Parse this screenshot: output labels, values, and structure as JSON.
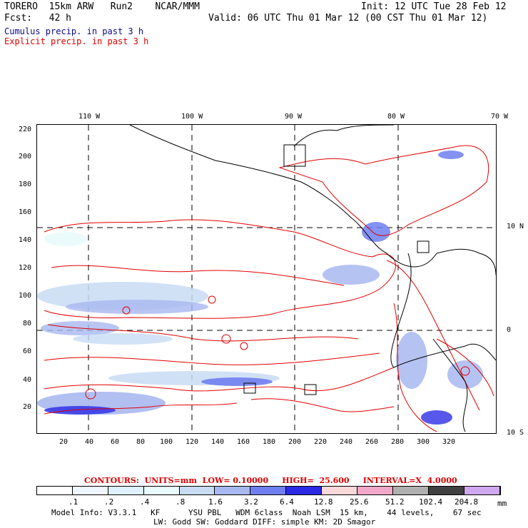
{
  "header": {
    "model": "TORERO  15km ARW   Run2    NCAR/MMM",
    "init": "Init: 12 UTC Tue 28 Feb 12",
    "fcst": "Fcst:   42 h",
    "valid": "Valid: 06 UTC Thu 01 Mar 12 (00 CST Thu 01 Mar 12)",
    "legend_cumulus": "Cumulus precip. in past 3 h",
    "legend_explicit": "Explicit precip. in past 3 h"
  },
  "axes": {
    "top_lon": [
      "110 W",
      "100 W",
      "90 W",
      "80 W",
      "70 W"
    ],
    "left_y": [
      "220",
      "200",
      "180",
      "160",
      "140",
      "120",
      "100",
      "80",
      "60",
      "40",
      "20"
    ],
    "bottom_x": [
      "20",
      "40",
      "60",
      "80",
      "100",
      "120",
      "140",
      "160",
      "180",
      "200",
      "220",
      "240",
      "260",
      "280",
      "300",
      "320"
    ],
    "right_lat": [
      "10 N",
      "0",
      "10 S"
    ]
  },
  "contours_line": "CONTOURS:  UNITS=mm  LOW= 0.10000     HIGH=  25.600     INTERVAL=X  4.0000",
  "colorbar": {
    "labels": [
      ".1",
      ".2",
      ".4",
      ".8",
      "1.6",
      "3.2",
      "6.4",
      "12.8",
      "25.6",
      "51.2",
      "102.4",
      "204.8"
    ],
    "units": "mm",
    "colors": [
      "#ffffff",
      "#f0f6ff",
      "#dff2ff",
      "#e9fbfb",
      "#c8dcf5",
      "#a8b8f0",
      "#6f7ff0",
      "#2a2ae8",
      "#f8d8d8",
      "#f2a8c8",
      "#b0b0b0",
      "#404040",
      "#d0a8f0"
    ]
  },
  "footer": {
    "line1": "Model Info: V3.3.1   KF      YSU PBL   WDM 6class  Noah LSM  15 km,    44 levels,    67 sec",
    "line2": "LW: Godd SW: Goddard DIFF: simple KM: 2D Smagor"
  }
}
